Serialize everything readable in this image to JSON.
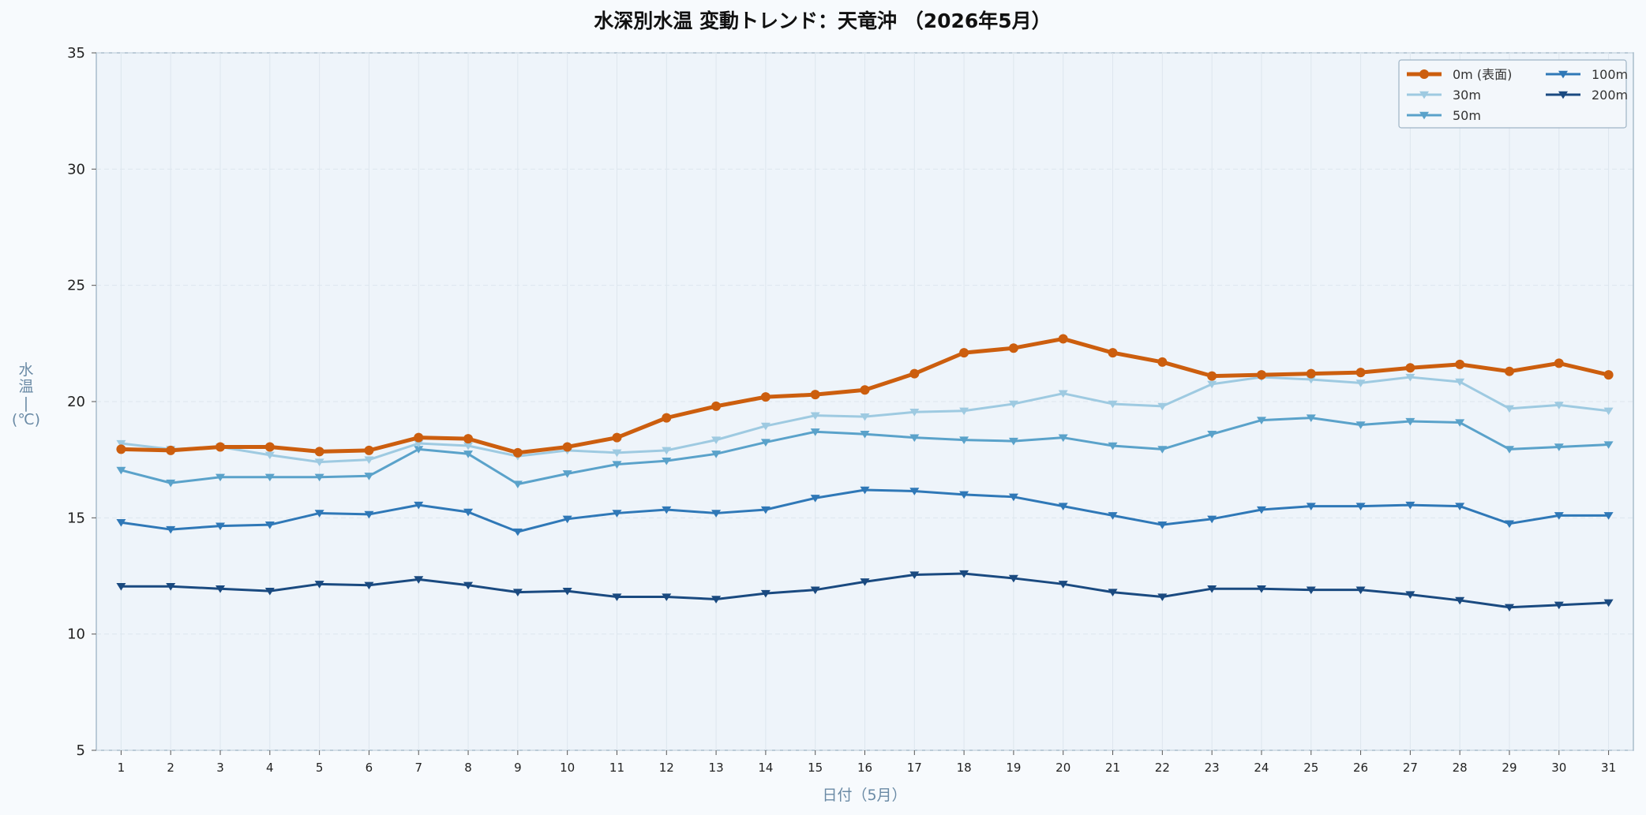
{
  "chart_data": {
    "type": "line",
    "title": "水深別水温 変動トレンド：天竜沖 （2026年5月）",
    "xlabel": "日付（5月）",
    "ylabel": "水温（℃）",
    "ylabel_chars": [
      "水",
      "温",
      "|",
      "(℃)"
    ],
    "x": [
      1,
      2,
      3,
      4,
      5,
      6,
      7,
      8,
      9,
      10,
      11,
      12,
      13,
      14,
      15,
      16,
      17,
      18,
      19,
      20,
      21,
      22,
      23,
      24,
      25,
      26,
      27,
      28,
      29,
      30,
      31
    ],
    "xlim": [
      0.5,
      31.5
    ],
    "ylim": [
      5,
      35
    ],
    "yticks": [
      5,
      10,
      15,
      20,
      25,
      30,
      35
    ],
    "grid": true,
    "legend_position": "top-right",
    "series": [
      {
        "name": "0m (表面)",
        "color": "#cc5e0e",
        "marker": "circle",
        "width": 5,
        "values": [
          17.95,
          17.9,
          18.05,
          18.05,
          17.85,
          17.9,
          18.45,
          18.4,
          17.8,
          18.05,
          18.45,
          19.3,
          19.8,
          20.2,
          20.3,
          20.5,
          21.2,
          22.1,
          22.3,
          22.7,
          22.1,
          21.7,
          21.1,
          21.15,
          21.2,
          21.25,
          21.45,
          21.6,
          21.3,
          21.65,
          21.15
        ]
      },
      {
        "name": "30m",
        "color": "#9ecae1",
        "marker": "triangle-down",
        "width": 3,
        "values": [
          18.2,
          17.95,
          18.05,
          17.7,
          17.4,
          17.5,
          18.2,
          18.1,
          17.65,
          17.9,
          17.8,
          17.9,
          18.35,
          18.95,
          19.4,
          19.35,
          19.55,
          19.6,
          19.9,
          20.35,
          19.9,
          19.8,
          20.75,
          21.05,
          20.95,
          20.8,
          21.05,
          20.85,
          19.7,
          19.85,
          19.6
        ]
      },
      {
        "name": "50m",
        "color": "#5aa2ca",
        "marker": "triangle-down",
        "width": 3,
        "values": [
          17.05,
          16.5,
          16.75,
          16.75,
          16.75,
          16.8,
          17.95,
          17.75,
          16.45,
          16.9,
          17.3,
          17.45,
          17.75,
          18.25,
          18.7,
          18.6,
          18.45,
          18.35,
          18.3,
          18.45,
          18.1,
          17.95,
          18.6,
          19.2,
          19.3,
          19.0,
          19.15,
          19.1,
          17.95,
          18.05,
          18.15
        ]
      },
      {
        "name": "100m",
        "color": "#2f78b7",
        "marker": "triangle-down",
        "width": 3,
        "values": [
          14.8,
          14.5,
          14.65,
          14.7,
          15.2,
          15.15,
          15.55,
          15.25,
          14.4,
          14.95,
          15.2,
          15.35,
          15.2,
          15.35,
          15.85,
          16.2,
          16.15,
          16.0,
          15.9,
          15.5,
          15.1,
          14.7,
          14.95,
          15.35,
          15.5,
          15.5,
          15.55,
          15.5,
          14.75,
          15.1,
          15.1
        ]
      },
      {
        "name": "200m",
        "color": "#1a4a80",
        "marker": "triangle-down",
        "width": 3,
        "values": [
          12.05,
          12.05,
          11.95,
          11.85,
          12.15,
          12.1,
          12.35,
          12.1,
          11.8,
          11.85,
          11.6,
          11.6,
          11.5,
          11.75,
          11.9,
          12.25,
          12.55,
          12.6,
          12.4,
          12.15,
          11.8,
          11.6,
          11.95,
          11.95,
          11.9,
          11.9,
          11.7,
          11.45,
          11.15,
          11.25,
          11.35
        ]
      }
    ]
  }
}
